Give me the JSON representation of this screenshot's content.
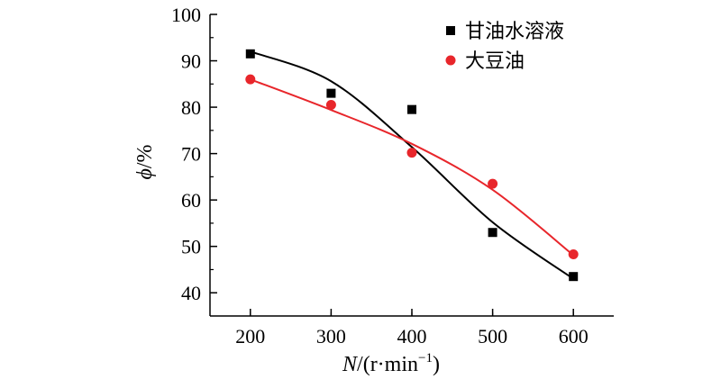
{
  "chart_data": {
    "type": "scatter",
    "x": [
      200,
      300,
      400,
      500,
      600
    ],
    "xlim": [
      150,
      650
    ],
    "ylim": [
      35,
      100
    ],
    "xticks": [
      200,
      300,
      400,
      500,
      600
    ],
    "yticks": [
      40,
      50,
      60,
      70,
      80,
      90,
      100
    ],
    "x_tick_labels": [
      "200",
      "300",
      "400",
      "500",
      "600"
    ],
    "y_tick_labels": [
      "40",
      "50",
      "60",
      "70",
      "80",
      "90",
      "100"
    ],
    "xlabel": "N/(r·min⁻¹)",
    "xlabel_parts": {
      "var": "N",
      "rest": "/(r·min",
      "sup": "−1",
      "close": ")"
    },
    "ylabel": "ϕ/%",
    "ylabel_parts": {
      "var": "ϕ",
      "rest": "/%"
    },
    "legend_position": "top-right",
    "grid": false,
    "series": [
      {
        "name": "甘油水溶液",
        "marker": "square",
        "color": "#000000",
        "values": [
          91.5,
          83.0,
          79.5,
          53.0,
          43.5
        ],
        "fit": [
          92.0,
          85.6,
          71.4,
          55.2,
          43.0
        ]
      },
      {
        "name": "大豆油",
        "marker": "circle",
        "color": "#e8262b",
        "values": [
          86.0,
          80.5,
          70.2,
          63.5,
          48.3
        ],
        "fit": [
          86.0,
          79.4,
          72.1,
          62.2,
          48.1
        ]
      }
    ]
  }
}
